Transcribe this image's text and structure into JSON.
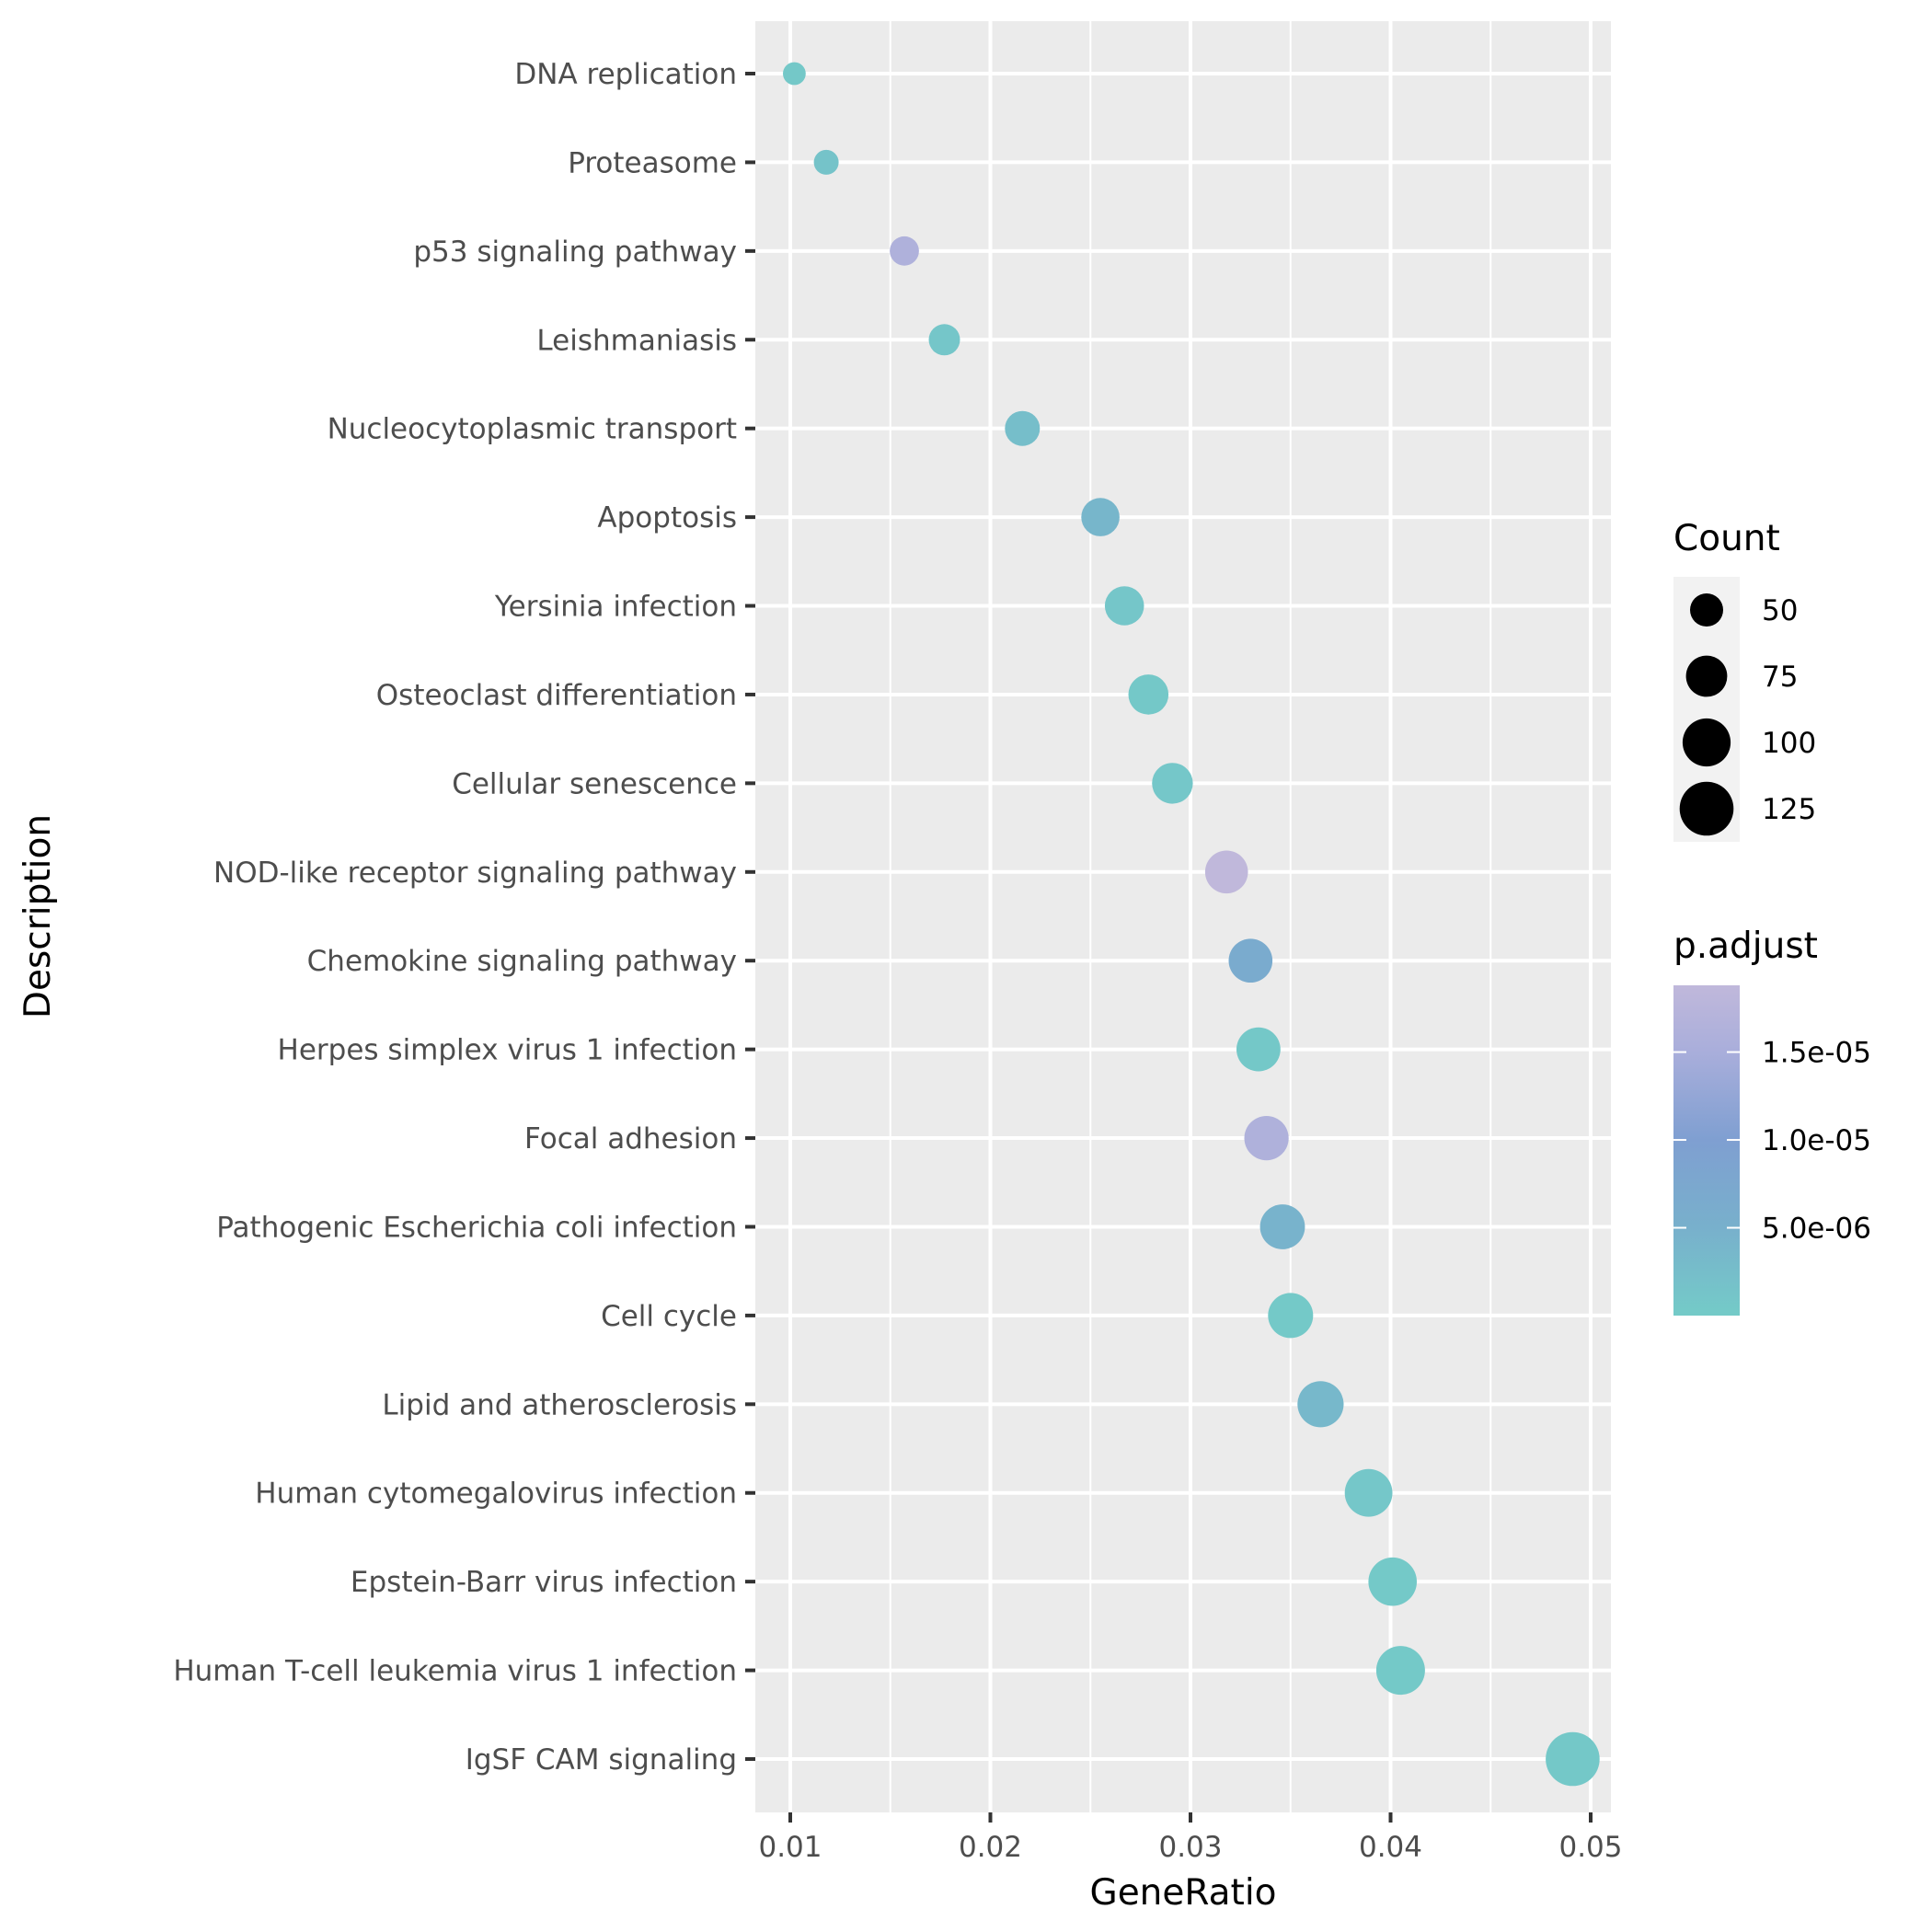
{
  "chart_data": {
    "type": "scatter",
    "subtype": "dot plot (enrichment)",
    "title": "",
    "xlabel": "GeneRatio",
    "ylabel": "Description",
    "xlim": [
      0.0083,
      0.0513
    ],
    "x_ticks": [
      0.01,
      0.02,
      0.03,
      0.04,
      0.05
    ],
    "x_tick_labels": [
      "0.01",
      "0.02",
      "0.03",
      "0.04",
      "0.05"
    ],
    "grid": true,
    "categories": [
      "DNA replication",
      "Proteasome",
      "p53 signaling pathway",
      "Leishmaniasis",
      "Nucleocytoplasmic transport",
      "Apoptosis",
      "Yersinia infection",
      "Osteoclast differentiation",
      "Cellular senescence",
      "NOD-like receptor signaling pathway",
      "Chemokine signaling pathway",
      "Herpes simplex virus 1 infection",
      "Focal adhesion",
      "Pathogenic Escherichia coli infection",
      "Cell cycle",
      "Lipid and atherosclerosis",
      "Human cytomegalovirus infection",
      "Epstein-Barr virus infection",
      "Human T-cell leukemia virus 1 infection",
      "IgSF CAM signaling"
    ],
    "points": [
      {
        "description": "DNA replication",
        "gene_ratio": 0.0102,
        "count": 26,
        "p_adjust": 5e-07
      },
      {
        "description": "Proteasome",
        "gene_ratio": 0.0118,
        "count": 30,
        "p_adjust": 1.5e-06
      },
      {
        "description": "p53 signaling pathway",
        "gene_ratio": 0.0157,
        "count": 40,
        "p_adjust": 1.6e-05
      },
      {
        "description": "Leishmaniasis",
        "gene_ratio": 0.0177,
        "count": 45,
        "p_adjust": 1e-06
      },
      {
        "description": "Nucleocytoplasmic transport",
        "gene_ratio": 0.0216,
        "count": 55,
        "p_adjust": 2.5e-06
      },
      {
        "description": "Apoptosis",
        "gene_ratio": 0.0255,
        "count": 65,
        "p_adjust": 3.8e-06
      },
      {
        "description": "Yersinia infection",
        "gene_ratio": 0.0267,
        "count": 68,
        "p_adjust": 1e-06
      },
      {
        "description": "Osteoclast differentiation",
        "gene_ratio": 0.0279,
        "count": 71,
        "p_adjust": 5e-07
      },
      {
        "description": "Cellular senescence",
        "gene_ratio": 0.0291,
        "count": 74,
        "p_adjust": 8e-07
      },
      {
        "description": "NOD-like receptor signaling pathway",
        "gene_ratio": 0.0318,
        "count": 81,
        "p_adjust": 1.88e-05
      },
      {
        "description": "Chemokine signaling pathway",
        "gene_ratio": 0.033,
        "count": 84,
        "p_adjust": 6.5e-06
      },
      {
        "description": "Herpes simplex virus 1 infection",
        "gene_ratio": 0.0334,
        "count": 85,
        "p_adjust": 5e-07
      },
      {
        "description": "Focal adhesion",
        "gene_ratio": 0.0338,
        "count": 86,
        "p_adjust": 1.6e-05
      },
      {
        "description": "Pathogenic Escherichia coli infection",
        "gene_ratio": 0.0346,
        "count": 88,
        "p_adjust": 4.5e-06
      },
      {
        "description": "Cell cycle",
        "gene_ratio": 0.035,
        "count": 89,
        "p_adjust": 3e-07
      },
      {
        "description": "Lipid and atherosclerosis",
        "gene_ratio": 0.0365,
        "count": 93,
        "p_adjust": 3.6e-06
      },
      {
        "description": "Human cytomegalovirus infection",
        "gene_ratio": 0.0389,
        "count": 99,
        "p_adjust": 8e-07
      },
      {
        "description": "Epstein-Barr virus infection",
        "gene_ratio": 0.0401,
        "count": 102,
        "p_adjust": 3e-07
      },
      {
        "description": "Human T-cell leukemia virus 1 infection",
        "gene_ratio": 0.0405,
        "count": 103,
        "p_adjust": 3e-07
      },
      {
        "description": "IgSF CAM signaling",
        "gene_ratio": 0.0491,
        "count": 125,
        "p_adjust": 6e-07
      }
    ],
    "legend": {
      "position": "right",
      "size": {
        "title": "Count",
        "breaks": [
          50,
          75,
          100,
          125
        ],
        "labels": [
          "50",
          "75",
          "100",
          "125"
        ]
      },
      "color": {
        "title": "p.adjust",
        "range": [
          0.0,
          1.88e-05
        ],
        "breaks": [
          5e-06,
          1e-05,
          1.5e-05
        ],
        "labels": [
          "5.0e-06",
          "1.0e-05",
          "1.5e-05"
        ],
        "low_color": "#74cbc8",
        "high_color": "#c0b8db",
        "gradient_stops": [
          {
            "value": 0.0,
            "color": "#74cbc8"
          },
          {
            "value": 5e-06,
            "color": "#78b0cc"
          },
          {
            "value": 1e-05,
            "color": "#7f9fd1"
          },
          {
            "value": 1.5e-05,
            "color": "#a9aedb"
          },
          {
            "value": 1.88e-05,
            "color": "#c0b8db"
          }
        ]
      }
    },
    "colors": {
      "panel_background": "#ebebeb",
      "grid_line": "#ffffff",
      "tick_label": "#4d4d4d",
      "tick_mark": "#333333",
      "legend_key_background": "#f2f2f2",
      "size_key_fill": "#000000"
    }
  }
}
